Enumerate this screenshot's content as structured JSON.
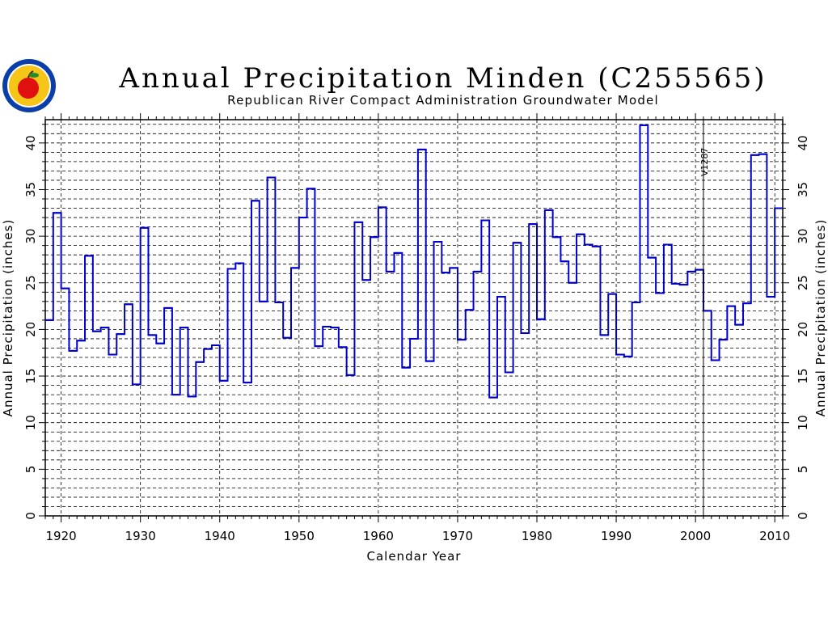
{
  "colors": {
    "series": "#0000cc",
    "axis": "#000000",
    "grid": "#000000",
    "background": "#ffffff",
    "logo_ring": "#0a3fa8",
    "logo_inner": "#f5c518",
    "logo_apple": "#e01010"
  },
  "logo": {
    "icon": "apple-seal-icon"
  },
  "chart_data": {
    "type": "step-line",
    "title": "Annual Precipitation Minden (C255565)",
    "subtitle": "Republican River Compact Administration Groundwater Model",
    "xlabel": "Calendar Year",
    "ylabel_left": "Annual Precipitation (inches)",
    "ylabel_right": "Annual Precipitation (inches)",
    "xlim": [
      1918,
      2011
    ],
    "ylim": [
      0,
      42.5
    ],
    "x_ticks": [
      1920,
      1930,
      1940,
      1950,
      1960,
      1970,
      1980,
      1990,
      2000,
      2010
    ],
    "x_tick_labels": [
      "1920",
      "1930",
      "1940",
      "1950",
      "1960",
      "1970",
      "1980",
      "1990",
      "2000",
      "2010"
    ],
    "y_ticks": [
      0,
      5,
      10,
      15,
      20,
      25,
      30,
      35,
      40
    ],
    "y_tick_labels": [
      "0",
      "5",
      "10",
      "15",
      "20",
      "25",
      "30",
      "35",
      "40"
    ],
    "grid": {
      "horizontal_step": 1,
      "vertical_dashed": true
    },
    "annotation": {
      "text": "V1287",
      "x": 2001
    },
    "series": [
      {
        "years": [
          1918,
          1919,
          1920,
          1921,
          1922,
          1923,
          1924,
          1925,
          1926,
          1927,
          1928,
          1929,
          1930,
          1931,
          1932,
          1933,
          1934,
          1935,
          1936,
          1937,
          1938,
          1939,
          1940,
          1941,
          1942,
          1943,
          1944,
          1945,
          1946,
          1947,
          1948,
          1949,
          1950,
          1951,
          1952,
          1953,
          1954,
          1955,
          1956,
          1957,
          1958,
          1959,
          1960,
          1961,
          1962,
          1963,
          1964,
          1965,
          1966,
          1967,
          1968,
          1969,
          1970,
          1971,
          1972,
          1973,
          1974,
          1975,
          1976,
          1977,
          1978,
          1979,
          1980,
          1981,
          1982,
          1983,
          1984,
          1985,
          1986,
          1987,
          1988,
          1989,
          1990,
          1991,
          1992,
          1993,
          1994,
          1995,
          1996,
          1997,
          1998,
          1999,
          2000,
          2001,
          2002,
          2003,
          2004,
          2005,
          2006,
          2007,
          2008,
          2009,
          2010
        ],
        "values": [
          21.0,
          32.5,
          24.4,
          17.7,
          18.8,
          27.9,
          19.8,
          20.2,
          17.3,
          19.5,
          22.7,
          14.1,
          30.9,
          19.4,
          18.5,
          22.3,
          13.0,
          20.2,
          12.8,
          16.5,
          17.9,
          18.3,
          14.5,
          26.5,
          27.1,
          14.3,
          33.8,
          23.0,
          36.3,
          22.9,
          19.1,
          26.6,
          32.0,
          35.1,
          18.2,
          20.3,
          20.2,
          18.1,
          15.1,
          31.5,
          25.3,
          29.9,
          33.1,
          26.2,
          28.2,
          15.9,
          19.0,
          39.3,
          16.6,
          29.4,
          26.1,
          26.6,
          18.9,
          22.1,
          26.2,
          31.7,
          12.7,
          23.5,
          15.4,
          29.3,
          19.6,
          31.3,
          21.1,
          32.8,
          29.9,
          27.3,
          25.0,
          30.2,
          29.1,
          28.9,
          19.4,
          23.8,
          17.3,
          17.1,
          22.9,
          41.9,
          27.7,
          23.9,
          29.1,
          24.9,
          24.8,
          26.2,
          26.4,
          22.0,
          16.7,
          18.9,
          22.5,
          20.5,
          22.8,
          38.7,
          38.8,
          23.5,
          33.0
        ]
      }
    ]
  }
}
